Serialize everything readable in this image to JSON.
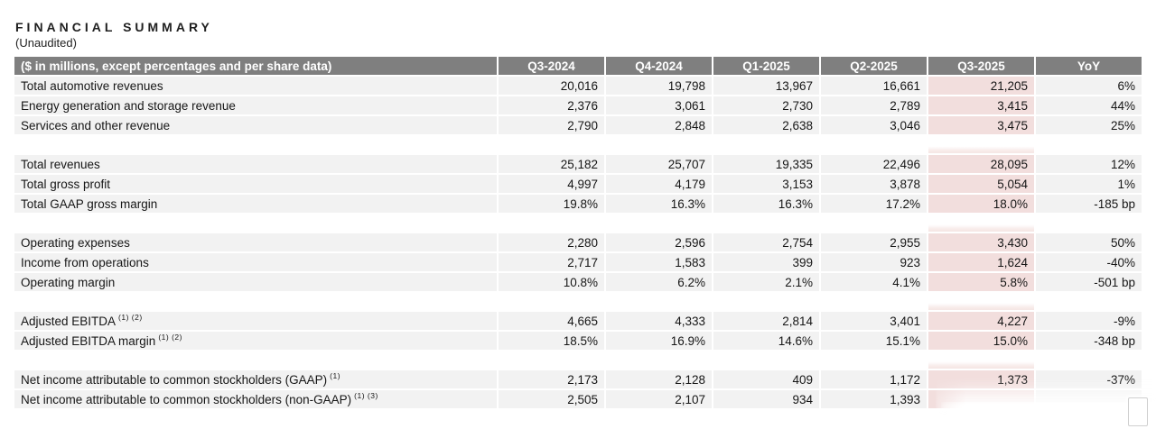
{
  "page": {
    "title": "FINANCIAL SUMMARY",
    "subtitle": "(Unaudited)"
  },
  "colors": {
    "header_bg": "#7f7f7f",
    "header_text": "#ffffff",
    "row_bg": "#f2f2f2",
    "highlight_column_bg": "#f2dedd",
    "spacer_highlight_bg": "#f5e6e4"
  },
  "table": {
    "corner_label": "($ in millions, except percentages and per share data)",
    "columns": [
      "Q3-2024",
      "Q4-2024",
      "Q1-2025",
      "Q2-2025",
      "Q3-2025",
      "YoY"
    ],
    "highlight_column": "Q3-2025",
    "sections": [
      {
        "rows": [
          {
            "label": "Total automotive revenues",
            "sup": "",
            "values": [
              "20,016",
              "19,798",
              "13,967",
              "16,661",
              "21,205",
              "6%"
            ]
          },
          {
            "label": "Energy generation and storage revenue",
            "sup": "",
            "values": [
              "2,376",
              "3,061",
              "2,730",
              "2,789",
              "3,415",
              "44%"
            ]
          },
          {
            "label": "Services and other revenue",
            "sup": "",
            "values": [
              "2,790",
              "2,848",
              "2,638",
              "3,046",
              "3,475",
              "25%"
            ]
          }
        ]
      },
      {
        "rows": [
          {
            "label": "Total revenues",
            "sup": "",
            "values": [
              "25,182",
              "25,707",
              "19,335",
              "22,496",
              "28,095",
              "12%"
            ]
          },
          {
            "label": "Total gross profit",
            "sup": "",
            "values": [
              "4,997",
              "4,179",
              "3,153",
              "3,878",
              "5,054",
              "1%"
            ]
          },
          {
            "label": "Total GAAP gross margin",
            "sup": "",
            "values": [
              "19.8%",
              "16.3%",
              "16.3%",
              "17.2%",
              "18.0%",
              "-185 bp"
            ]
          }
        ]
      },
      {
        "rows": [
          {
            "label": "Operating expenses",
            "sup": "",
            "values": [
              "2,280",
              "2,596",
              "2,754",
              "2,955",
              "3,430",
              "50%"
            ]
          },
          {
            "label": "Income from operations",
            "sup": "",
            "values": [
              "2,717",
              "1,583",
              "399",
              "923",
              "1,624",
              "-40%"
            ]
          },
          {
            "label": "Operating margin",
            "sup": "",
            "values": [
              "10.8%",
              "6.2%",
              "2.1%",
              "4.1%",
              "5.8%",
              "-501 bp"
            ]
          }
        ]
      },
      {
        "rows": [
          {
            "label": "Adjusted EBITDA",
            "sup": "(1) (2)",
            "values": [
              "4,665",
              "4,333",
              "2,814",
              "3,401",
              "4,227",
              "-9%"
            ]
          },
          {
            "label": "Adjusted EBITDA margin",
            "sup": "(1) (2)",
            "values": [
              "18.5%",
              "16.9%",
              "14.6%",
              "15.1%",
              "15.0%",
              "-348 bp"
            ]
          }
        ]
      },
      {
        "rows": [
          {
            "label": "Net income attributable to common stockholders (GAAP)",
            "sup": "(1)",
            "values": [
              "2,173",
              "2,128",
              "409",
              "1,172",
              "1,373",
              "-37%"
            ]
          },
          {
            "label": "Net income attributable to common stockholders (non-GAAP)",
            "sup": "(1) (3)",
            "values": [
              "2,505",
              "2,107",
              "934",
              "1,393",
              "",
              ""
            ]
          }
        ]
      }
    ]
  }
}
